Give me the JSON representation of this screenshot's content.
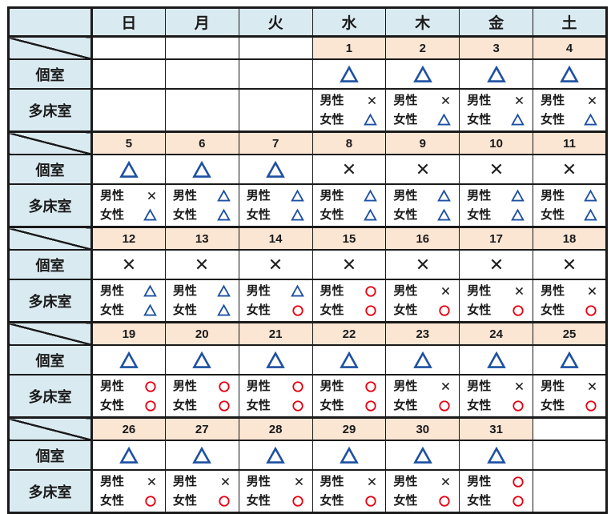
{
  "table": {
    "corner_label": "",
    "day_headers": [
      "日",
      "月",
      "火",
      "水",
      "木",
      "金",
      "土"
    ],
    "row_labels": {
      "private": "個室",
      "shared": "多床室"
    },
    "gender_labels": {
      "male": "男性",
      "female": "女性"
    },
    "symbol_glyphs": {
      "triangle": "△",
      "circle": "○",
      "cross": "×"
    },
    "colors": {
      "header_bg": "#daeaf1",
      "date_bg": "#fbe5d3",
      "triangle": "#1d50a2",
      "circle": "#e60012",
      "cross": "#1f1f1f",
      "border": "#1a1a1a"
    },
    "weeks": [
      {
        "dates": [
          "",
          "",
          "",
          "1",
          "2",
          "3",
          "4"
        ],
        "private": [
          "",
          "",
          "",
          "triangle",
          "triangle",
          "triangle",
          "triangle"
        ],
        "shared_male": [
          "",
          "",
          "",
          "cross",
          "cross",
          "cross",
          "cross"
        ],
        "shared_female": [
          "",
          "",
          "",
          "triangle",
          "triangle",
          "triangle",
          "triangle"
        ]
      },
      {
        "dates": [
          "5",
          "6",
          "7",
          "8",
          "9",
          "10",
          "11"
        ],
        "private": [
          "triangle",
          "triangle",
          "triangle",
          "cross",
          "cross",
          "cross",
          "cross"
        ],
        "shared_male": [
          "cross",
          "triangle",
          "triangle",
          "triangle",
          "triangle",
          "triangle",
          "triangle"
        ],
        "shared_female": [
          "triangle",
          "triangle",
          "triangle",
          "triangle",
          "triangle",
          "triangle",
          "triangle"
        ]
      },
      {
        "dates": [
          "12",
          "13",
          "14",
          "15",
          "16",
          "17",
          "18"
        ],
        "private": [
          "cross",
          "cross",
          "cross",
          "cross",
          "cross",
          "cross",
          "cross"
        ],
        "shared_male": [
          "triangle",
          "triangle",
          "triangle",
          "circle",
          "cross",
          "cross",
          "cross"
        ],
        "shared_female": [
          "triangle",
          "triangle",
          "circle",
          "circle",
          "circle",
          "circle",
          "circle"
        ]
      },
      {
        "dates": [
          "19",
          "20",
          "21",
          "22",
          "23",
          "24",
          "25"
        ],
        "private": [
          "triangle",
          "triangle",
          "triangle",
          "triangle",
          "triangle",
          "triangle",
          "triangle"
        ],
        "shared_male": [
          "circle",
          "circle",
          "circle",
          "circle",
          "cross",
          "cross",
          "cross"
        ],
        "shared_female": [
          "circle",
          "circle",
          "circle",
          "circle",
          "circle",
          "circle",
          "circle"
        ]
      },
      {
        "dates": [
          "26",
          "27",
          "28",
          "29",
          "30",
          "31",
          ""
        ],
        "private": [
          "triangle",
          "triangle",
          "triangle",
          "triangle",
          "triangle",
          "triangle",
          ""
        ],
        "shared_male": [
          "cross",
          "cross",
          "cross",
          "cross",
          "cross",
          "circle",
          ""
        ],
        "shared_female": [
          "circle",
          "circle",
          "circle",
          "circle",
          "circle",
          "circle",
          ""
        ]
      }
    ]
  }
}
